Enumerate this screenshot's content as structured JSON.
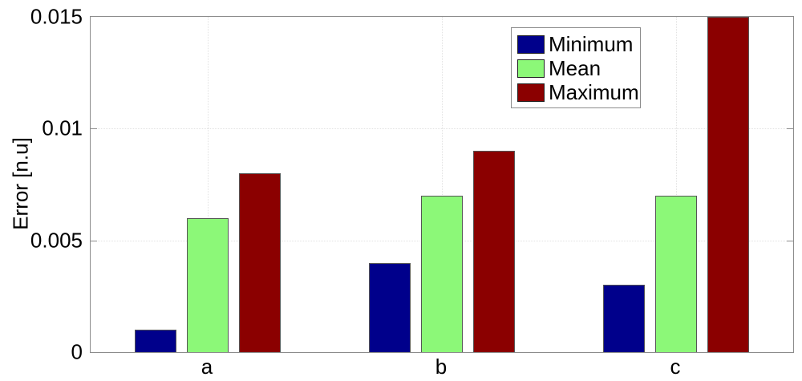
{
  "chart_data": {
    "type": "bar",
    "title": "",
    "xlabel": "",
    "ylabel": "Error [n.u]",
    "categories": [
      "a",
      "b",
      "c"
    ],
    "series": [
      {
        "name": "Minimum",
        "color": "#00008B",
        "values": [
          0.001,
          0.004,
          0.003
        ]
      },
      {
        "name": "Mean",
        "color": "#8CF878",
        "values": [
          0.006,
          0.007,
          0.007
        ]
      },
      {
        "name": "Maximum",
        "color": "#8B0000",
        "values": [
          0.008,
          0.009,
          0.015
        ]
      }
    ],
    "ylim": [
      0,
      0.015
    ],
    "yticks": [
      0,
      0.005,
      0.01,
      0.015
    ],
    "ytick_labels": [
      "0",
      "0.005",
      "0.01",
      "0.015"
    ],
    "grid": true,
    "grid_style": "dotted",
    "legend_position": "upper-right-inside",
    "frame_color": "#8c8c8c",
    "background_color": "#ffffff"
  }
}
